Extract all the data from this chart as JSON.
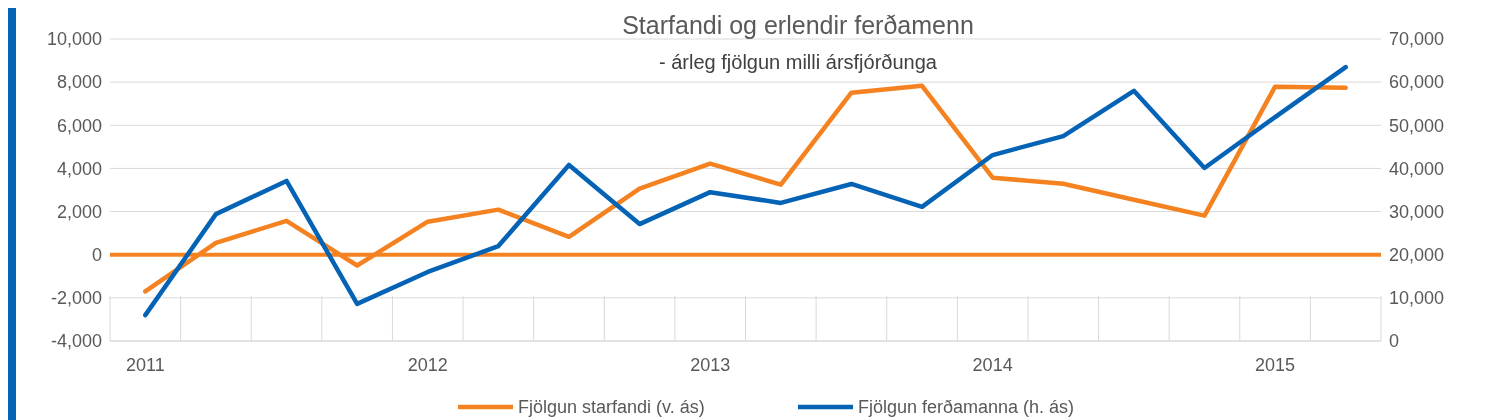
{
  "chart_data": {
    "type": "line",
    "title": "Starfandi og erlendir ferðamenn",
    "subtitle": "- árleg fjölgun milli ársfjórðunga",
    "categories": [
      "2011",
      null,
      null,
      null,
      "2012",
      null,
      null,
      null,
      "2013",
      null,
      null,
      null,
      "2014",
      null,
      null,
      null,
      "2015",
      null
    ],
    "series": [
      {
        "name": "Fjölgun starfandi (v. ás)",
        "color": "#f58220",
        "values": [
          -1700,
          550,
          1570,
          -500,
          1530,
          2090,
          830,
          3060,
          4220,
          3250,
          7510,
          7830,
          3570,
          3290,
          2550,
          1810,
          7790,
          7740
        ]
      },
      {
        "name": "Fjölgun ferðamanna (h. ás)",
        "color": "#0563b5",
        "axis": "y2",
        "values": [
          6000,
          29400,
          37100,
          8600,
          16000,
          22000,
          40800,
          27100,
          34500,
          32000,
          36400,
          31100,
          43100,
          47500,
          58000,
          40100,
          51900,
          63500
        ]
      }
    ],
    "ylim": [
      -4000,
      10000
    ],
    "yticks": [
      {
        "value": -4000,
        "label": "-4,000"
      },
      {
        "value": -2000,
        "label": "-2,000"
      },
      0,
      {
        "value": 2000,
        "label": "2,000"
      },
      {
        "value": 4000,
        "label": "4,000"
      },
      {
        "value": 6000,
        "label": "6,000"
      },
      {
        "value": 8000,
        "label": "8,000"
      },
      {
        "value": 10000,
        "label": "10,000"
      }
    ],
    "y2lim": [
      0,
      70000
    ],
    "y2ticks": [
      0,
      {
        "value": 10000,
        "label": "10,000"
      },
      {
        "value": 20000,
        "label": "20,000"
      },
      {
        "value": 30000,
        "label": "30,000"
      },
      {
        "value": 40000,
        "label": "40,000"
      },
      {
        "value": 50000,
        "label": "50,000"
      },
      {
        "value": 60000,
        "label": "60,000"
      },
      {
        "value": 70000,
        "label": "70,000"
      }
    ],
    "ref_lines": [
      {
        "axis": "y",
        "value": 0,
        "color": "#f58220"
      }
    ],
    "grid": "y",
    "legend": "bottom",
    "marker": "none",
    "line_style": "solid"
  }
}
